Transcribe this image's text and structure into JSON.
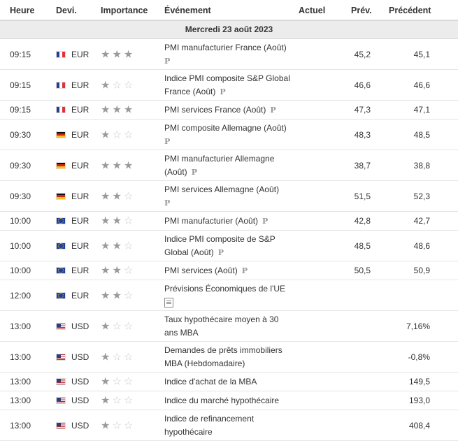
{
  "headers": {
    "heure": "Heure",
    "devi": "Devi.",
    "importance": "Importance",
    "evenement": "Événement",
    "actuel": "Actuel",
    "prev": "Prév.",
    "precedent": "Précédent"
  },
  "day_label": "Mercredi 23 août 2023",
  "rows": [
    {
      "time": "09:15",
      "flag": "fr",
      "currency": "EUR",
      "stars": 3,
      "event": "PMI manufacturier France (Août)",
      "badge": "P",
      "badge_block": true,
      "actual": "",
      "prev": "45,2",
      "precedent": "45,1"
    },
    {
      "time": "09:15",
      "flag": "fr",
      "currency": "EUR",
      "stars": 1,
      "event": "Indice PMI composite S&P Global France (Août)",
      "badge": "P",
      "badge_block": false,
      "actual": "",
      "prev": "46,6",
      "precedent": "46,6"
    },
    {
      "time": "09:15",
      "flag": "fr",
      "currency": "EUR",
      "stars": 3,
      "event": "PMI services France (Août)",
      "badge": "P",
      "badge_block": false,
      "actual": "",
      "prev": "47,3",
      "precedent": "47,1"
    },
    {
      "time": "09:30",
      "flag": "de",
      "currency": "EUR",
      "stars": 1,
      "event": "PMI composite Allemagne (Août)",
      "badge": "P",
      "badge_block": true,
      "actual": "",
      "prev": "48,3",
      "precedent": "48,5"
    },
    {
      "time": "09:30",
      "flag": "de",
      "currency": "EUR",
      "stars": 3,
      "event": "PMI manufacturier Allemagne (Août)",
      "badge": "P",
      "badge_block": false,
      "actual": "",
      "prev": "38,7",
      "precedent": "38,8"
    },
    {
      "time": "09:30",
      "flag": "de",
      "currency": "EUR",
      "stars": 2,
      "event": "PMI services Allemagne (Août)",
      "badge": "P",
      "badge_block": true,
      "actual": "",
      "prev": "51,5",
      "precedent": "52,3"
    },
    {
      "time": "10:00",
      "flag": "eu",
      "currency": "EUR",
      "stars": 2,
      "event": "PMI manufacturier (Août)",
      "badge": "P",
      "badge_block": false,
      "actual": "",
      "prev": "42,8",
      "precedent": "42,7"
    },
    {
      "time": "10:00",
      "flag": "eu",
      "currency": "EUR",
      "stars": 2,
      "event": "Indice PMI composite de S&P Global (Août)",
      "badge": "P",
      "badge_block": false,
      "actual": "",
      "prev": "48,5",
      "precedent": "48,6"
    },
    {
      "time": "10:00",
      "flag": "eu",
      "currency": "EUR",
      "stars": 2,
      "event": "PMI services (Août)",
      "badge": "P",
      "badge_block": false,
      "actual": "",
      "prev": "50,5",
      "precedent": "50,9"
    },
    {
      "time": "12:00",
      "flag": "eu",
      "currency": "EUR",
      "stars": 2,
      "event": "Prévisions Économiques de l'UE",
      "badge": "doc",
      "badge_block": true,
      "actual": "",
      "prev": "",
      "precedent": ""
    },
    {
      "time": "13:00",
      "flag": "us",
      "currency": "USD",
      "stars": 1,
      "event": "Taux hypothécaire moyen à 30 ans MBA",
      "badge": "",
      "badge_block": false,
      "actual": "",
      "prev": "",
      "precedent": "7,16%"
    },
    {
      "time": "13:00",
      "flag": "us",
      "currency": "USD",
      "stars": 1,
      "event": "Demandes de prêts immobiliers MBA (Hebdomadaire)",
      "badge": "",
      "badge_block": false,
      "actual": "",
      "prev": "",
      "precedent": "-0,8%"
    },
    {
      "time": "13:00",
      "flag": "us",
      "currency": "USD",
      "stars": 1,
      "event": "Indice d'achat de la MBA",
      "badge": "",
      "badge_block": false,
      "actual": "",
      "prev": "",
      "precedent": "149,5"
    },
    {
      "time": "13:00",
      "flag": "us",
      "currency": "USD",
      "stars": 1,
      "event": "Indice du marché hypothécaire",
      "badge": "",
      "badge_block": false,
      "actual": "",
      "prev": "",
      "precedent": "193,0"
    },
    {
      "time": "13:00",
      "flag": "us",
      "currency": "USD",
      "stars": 1,
      "event": "Indice de refinancement hypothécaire",
      "badge": "",
      "badge_block": false,
      "actual": "",
      "prev": "",
      "precedent": "408,4"
    }
  ]
}
